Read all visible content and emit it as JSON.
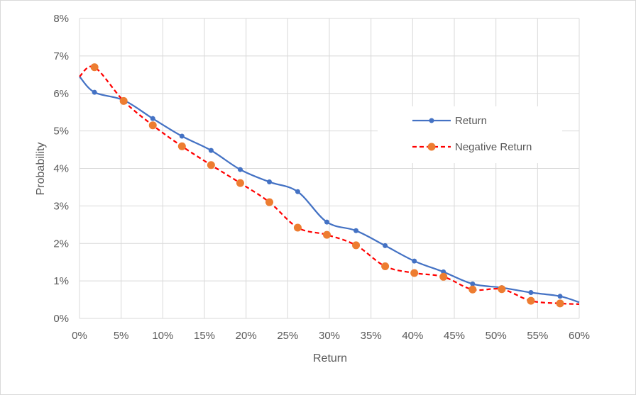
{
  "chart_data": {
    "type": "line",
    "xlabel": "Return",
    "ylabel": "Probability",
    "xlim": [
      0,
      0.6
    ],
    "ylim": [
      0,
      0.08
    ],
    "x_ticks": [
      0,
      0.05,
      0.1,
      0.15,
      0.2,
      0.25,
      0.3,
      0.35,
      0.4,
      0.45,
      0.5,
      0.55,
      0.6
    ],
    "x_tick_labels": [
      "0%",
      "5%",
      "10%",
      "15%",
      "20%",
      "25%",
      "30%",
      "35%",
      "40%",
      "45%",
      "50%",
      "55%",
      "60%"
    ],
    "y_ticks": [
      0,
      0.01,
      0.02,
      0.03,
      0.04,
      0.05,
      0.06,
      0.07,
      0.08
    ],
    "y_tick_labels": [
      "0%",
      "1%",
      "2%",
      "3%",
      "4%",
      "5%",
      "6%",
      "7%",
      "8%"
    ],
    "grid": true,
    "legend_position": "right",
    "series": [
      {
        "name": "Return",
        "color": "#4472c4",
        "dash": "solid",
        "marker": "circle-small",
        "x": [
          0.018,
          0.053,
          0.088,
          0.123,
          0.158,
          0.193,
          0.228,
          0.262,
          0.297,
          0.332,
          0.367,
          0.402,
          0.437,
          0.472,
          0.507,
          0.542,
          0.577
        ],
        "y": [
          0.0603,
          0.0582,
          0.0533,
          0.0486,
          0.0448,
          0.0397,
          0.0364,
          0.0338,
          0.0257,
          0.0234,
          0.0194,
          0.0153,
          0.0124,
          0.0092,
          0.0082,
          0.0069,
          0.0059
        ],
        "start": [
          0,
          0.0645
        ],
        "end": [
          0.6,
          0.0043
        ]
      },
      {
        "name": "Negative Return",
        "color": "#ff0000",
        "marker_color": "#ed7d31",
        "dash": "dashed",
        "marker": "circle-large",
        "x": [
          0.018,
          0.053,
          0.088,
          0.123,
          0.158,
          0.193,
          0.228,
          0.262,
          0.297,
          0.332,
          0.367,
          0.402,
          0.437,
          0.472,
          0.507,
          0.542,
          0.577
        ],
        "y": [
          0.067,
          0.058,
          0.0515,
          0.0459,
          0.0409,
          0.0361,
          0.031,
          0.0242,
          0.0223,
          0.0195,
          0.0139,
          0.0121,
          0.0111,
          0.0077,
          0.0078,
          0.0047,
          0.004
        ],
        "start": [
          0,
          0.0645
        ],
        "end": [
          0.6,
          0.0038
        ]
      }
    ]
  }
}
